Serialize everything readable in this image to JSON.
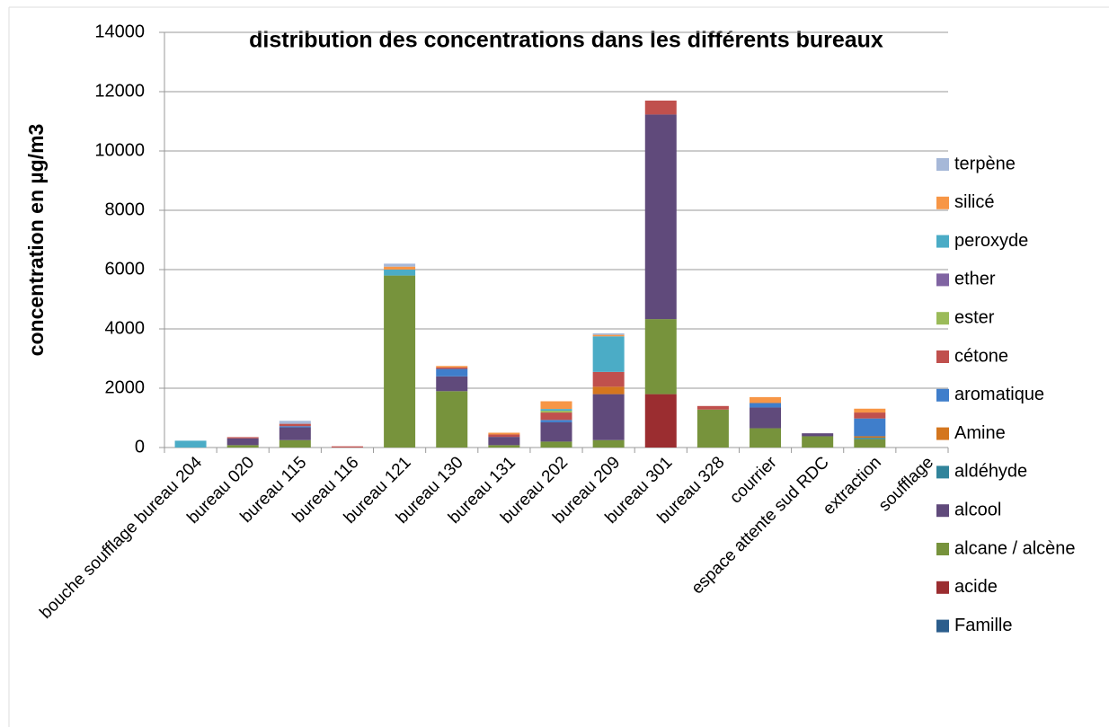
{
  "chart_data": {
    "type": "stacked_bar",
    "title": "distribution des concentrations dans les différents bureaux",
    "y_label": "concentration en µg/m3",
    "categories": [
      "bouche soufflage bureau 204",
      "bureau 020",
      "bureau 115",
      "bureau 116",
      "bureau 121",
      "bureau 130",
      "bureau 131",
      "bureau 202",
      "bureau 209",
      "bureau 301",
      "bureau 328",
      "courrier",
      "espace attente sud RDC",
      "extraction",
      "soufflage"
    ],
    "series": [
      {
        "name": "Famille",
        "color": "#2b5d8c",
        "values": [
          0,
          0,
          0,
          0,
          0,
          0,
          0,
          0,
          0,
          0,
          0,
          0,
          0,
          0,
          0
        ]
      },
      {
        "name": "acide",
        "color": "#9b2d30",
        "values": [
          0,
          0,
          0,
          0,
          0,
          0,
          0,
          0,
          0,
          1800,
          0,
          0,
          0,
          0,
          0
        ]
      },
      {
        "name": "alcane / alcène",
        "color": "#77933c",
        "values": [
          0,
          80,
          250,
          0,
          5800,
          1900,
          80,
          200,
          250,
          2530,
          1280,
          650,
          380,
          280,
          0
        ]
      },
      {
        "name": "alcool",
        "color": "#604a7b",
        "values": [
          0,
          230,
          430,
          0,
          0,
          500,
          280,
          650,
          1550,
          6900,
          0,
          700,
          100,
          0,
          0
        ]
      },
      {
        "name": "aldéhyde",
        "color": "#31849b",
        "values": [
          0,
          0,
          0,
          0,
          0,
          0,
          0,
          0,
          0,
          0,
          0,
          0,
          0,
          50,
          0
        ]
      },
      {
        "name": "Amine",
        "color": "#d4761e",
        "values": [
          0,
          0,
          0,
          0,
          0,
          0,
          0,
          0,
          250,
          0,
          0,
          0,
          0,
          50,
          0
        ]
      },
      {
        "name": "aromatique",
        "color": "#3f7ecb",
        "values": [
          0,
          0,
          40,
          0,
          0,
          250,
          0,
          80,
          0,
          0,
          0,
          150,
          0,
          600,
          0
        ]
      },
      {
        "name": "cétone",
        "color": "#c0504d",
        "values": [
          0,
          40,
          80,
          40,
          0,
          50,
          80,
          250,
          500,
          470,
          120,
          0,
          0,
          200,
          0
        ]
      },
      {
        "name": "ester",
        "color": "#9bbb59",
        "values": [
          0,
          0,
          0,
          0,
          0,
          0,
          0,
          60,
          0,
          0,
          0,
          0,
          0,
          0,
          0
        ]
      },
      {
        "name": "ether",
        "color": "#8064a2",
        "values": [
          0,
          0,
          0,
          0,
          0,
          0,
          0,
          0,
          0,
          0,
          0,
          0,
          0,
          0,
          0
        ]
      },
      {
        "name": "peroxyde",
        "color": "#4bacc6",
        "values": [
          230,
          0,
          0,
          0,
          200,
          0,
          0,
          60,
          1200,
          0,
          0,
          0,
          0,
          0,
          0
        ]
      },
      {
        "name": "silicé",
        "color": "#f79646",
        "values": [
          0,
          0,
          0,
          0,
          100,
          50,
          60,
          260,
          50,
          0,
          0,
          200,
          0,
          130,
          0
        ]
      },
      {
        "name": "terpène",
        "color": "#a6b8d8",
        "values": [
          0,
          0,
          100,
          0,
          100,
          0,
          0,
          0,
          50,
          0,
          0,
          0,
          0,
          0,
          0
        ]
      }
    ],
    "ylim": [
      0,
      14000
    ],
    "yticks": [
      0,
      2000,
      4000,
      6000,
      8000,
      10000,
      12000,
      14000
    ],
    "grid": true,
    "legend": "right"
  }
}
